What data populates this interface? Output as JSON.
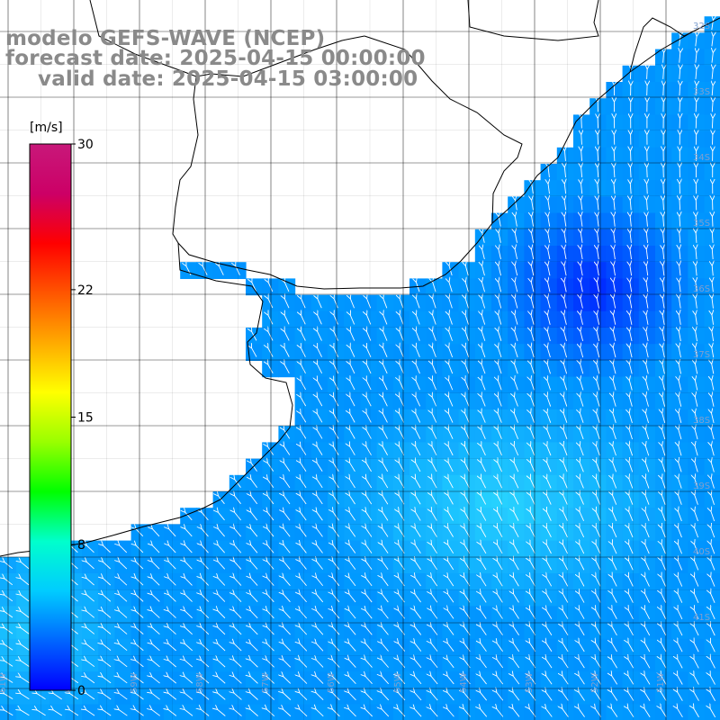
{
  "header": {
    "line1": "modelo GEFS-WAVE (NCEP)",
    "line2": "forecast date: 2025-04-15 00:00:00",
    "line3": "valid date: 2025-04-15 03:00:00"
  },
  "colorbar": {
    "unit": "[m/s]",
    "ticks": [
      "30",
      "22",
      "15",
      "8",
      "0"
    ],
    "tick_values": [
      30,
      22,
      15,
      8,
      0
    ],
    "range": [
      0,
      30
    ],
    "colors": [
      "#0000ff",
      "#0066ff",
      "#00ccff",
      "#00ffcc",
      "#00ff00",
      "#99ff00",
      "#ffff00",
      "#ffaa00",
      "#ff5500",
      "#ff0000",
      "#cc0066",
      "#c8187a"
    ]
  },
  "map": {
    "land_color": "#ffffff",
    "grid_color": "#000000",
    "arrow_color": "#ffffff",
    "lat_labels": [
      "32S",
      "33S",
      "34S",
      "35S",
      "36S",
      "37S",
      "38S",
      "39S",
      "40S",
      "41S"
    ],
    "lon_labels": [
      "61W",
      "60W",
      "59W",
      "58W",
      "57W",
      "56W",
      "55W",
      "54W",
      "53W",
      "52W",
      "51W"
    ]
  }
}
